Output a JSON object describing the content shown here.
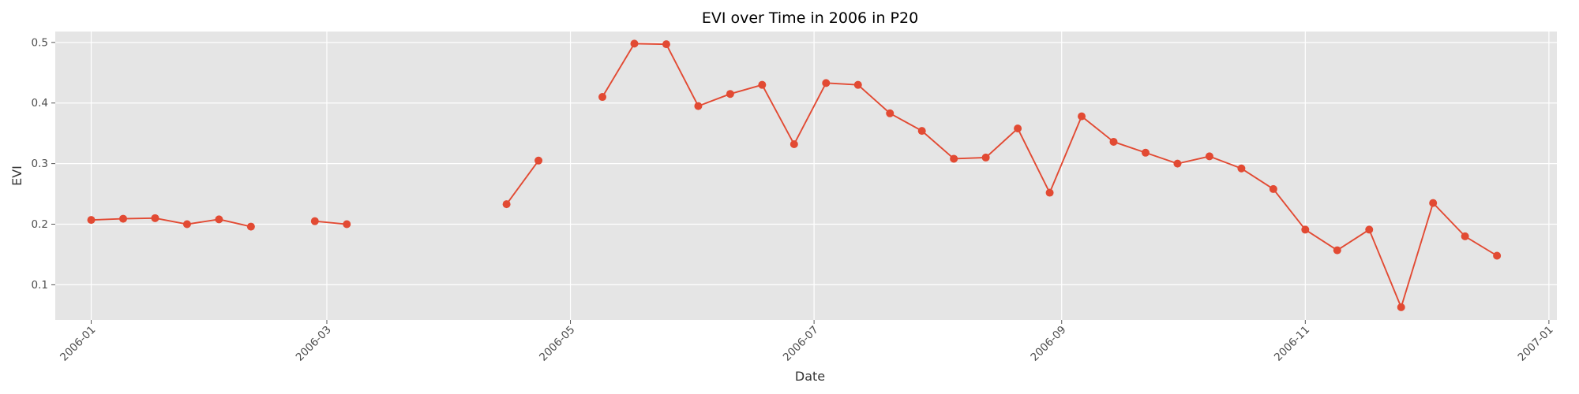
{
  "chart_data": {
    "type": "line",
    "title": "EVI over Time in 2006 in P20",
    "xlabel": "Date",
    "ylabel": "EVI",
    "x_axis_type": "date",
    "xlim": [
      "2005-12-23",
      "2007-01-03"
    ],
    "ylim": [
      0.042,
      0.518
    ],
    "x_ticks": [
      "2006-01",
      "2006-03",
      "2006-05",
      "2006-07",
      "2006-09",
      "2006-11",
      "2007-01"
    ],
    "y_ticks": [
      "0.1",
      "0.2",
      "0.3",
      "0.4",
      "0.5"
    ],
    "grid": true,
    "background_color": "#e5e5e5",
    "grid_color": "#ffffff",
    "series": [
      {
        "color": "#e24a33",
        "marker": "circle",
        "x": [
          "2006-01-01",
          "2006-01-09",
          "2006-01-17",
          "2006-01-25",
          "2006-02-02",
          "2006-02-10",
          "2006-02-26",
          "2006-03-06",
          "2006-04-15",
          "2006-04-23",
          "2006-05-09",
          "2006-05-17",
          "2006-05-25",
          "2006-06-02",
          "2006-06-10",
          "2006-06-18",
          "2006-06-26",
          "2006-07-04",
          "2006-07-12",
          "2006-07-20",
          "2006-07-28",
          "2006-08-05",
          "2006-08-13",
          "2006-08-21",
          "2006-08-29",
          "2006-09-06",
          "2006-09-14",
          "2006-09-22",
          "2006-09-30",
          "2006-10-08",
          "2006-10-16",
          "2006-10-24",
          "2006-11-01",
          "2006-11-09",
          "2006-11-17",
          "2006-11-25",
          "2006-12-03",
          "2006-12-11",
          "2006-12-19"
        ],
        "y": [
          0.207,
          0.209,
          0.21,
          0.2,
          0.208,
          0.196,
          0.205,
          0.2,
          0.233,
          0.305,
          0.41,
          0.498,
          0.497,
          0.395,
          0.415,
          0.43,
          0.332,
          0.433,
          0.43,
          0.383,
          0.354,
          0.308,
          0.31,
          0.358,
          0.252,
          0.378,
          0.336,
          0.318,
          0.3,
          0.312,
          0.292,
          0.258,
          0.191,
          0.157,
          0.191,
          0.063,
          0.235,
          0.18,
          0.148
        ],
        "segments": [
          [
            0,
            5
          ],
          [
            6,
            7
          ],
          [
            8,
            9
          ],
          [
            10,
            38
          ]
        ]
      }
    ]
  }
}
